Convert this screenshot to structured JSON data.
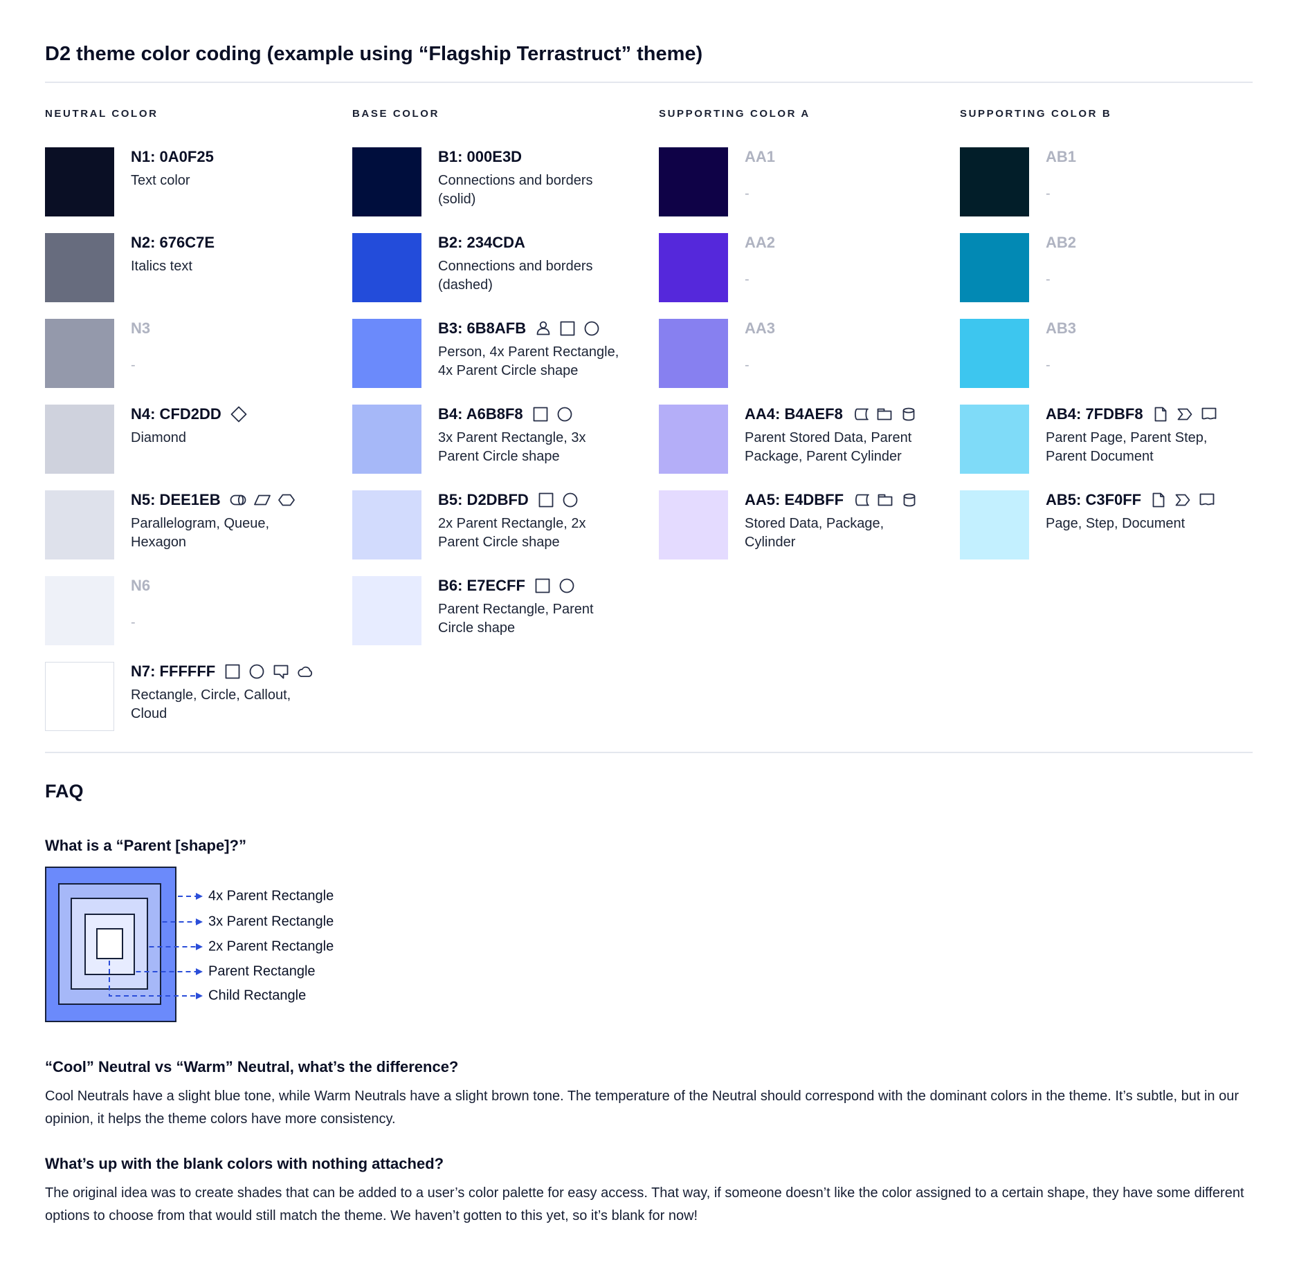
{
  "header": {
    "title": "D2 theme color coding (example using “Flagship Terrastruct” theme)"
  },
  "palette": {
    "columns": [
      {
        "header": "NEUTRAL COLOR",
        "entries": [
          {
            "label": "N1: 0A0F25",
            "swatch": "#0A0F25",
            "desc": "Text color",
            "icons": [],
            "blank": false
          },
          {
            "label": "N2: 676C7E",
            "swatch": "#676C7E",
            "desc": "Italics text",
            "icons": [],
            "blank": false
          },
          {
            "label": "N3",
            "swatch": "#9499AB",
            "desc": "-",
            "icons": [],
            "blank": true
          },
          {
            "label": "N4: CFD2DD",
            "swatch": "#CFD2DD",
            "desc": "Diamond",
            "icons": [
              "diamond"
            ],
            "blank": false
          },
          {
            "label": "N5: DEE1EB",
            "swatch": "#DEE1EB",
            "desc": "Parallelogram, Queue, Hexagon",
            "icons": [
              "queue",
              "parallelogram",
              "hexagon"
            ],
            "blank": false
          },
          {
            "label": "N6",
            "swatch": "#EEF1F8",
            "desc": "-",
            "icons": [],
            "blank": true
          },
          {
            "label": "N7: FFFFFF",
            "swatch": "#FFFFFF",
            "desc": "Rectangle, Circle, Callout, Cloud",
            "icons": [
              "rectangle",
              "circle",
              "callout",
              "cloud"
            ],
            "blank": false,
            "bordered": true
          }
        ]
      },
      {
        "header": "BASE COLOR",
        "entries": [
          {
            "label": "B1: 000E3D",
            "swatch": "#000E3D",
            "desc": "Connections and borders (solid)",
            "icons": [],
            "blank": false
          },
          {
            "label": "B2: 234CDA",
            "swatch": "#234CDA",
            "desc": "Connections and borders (dashed)",
            "icons": [],
            "blank": false
          },
          {
            "label": "B3: 6B8AFB",
            "swatch": "#6B8AFB",
            "desc": "Person, 4x Parent Rectangle, 4x Parent Circle shape",
            "icons": [
              "person",
              "rectangle",
              "circle"
            ],
            "blank": false
          },
          {
            "label": "B4: A6B8F8",
            "swatch": "#A6B8F8",
            "desc": "3x Parent Rectangle, 3x Parent Circle shape",
            "icons": [
              "rectangle",
              "circle"
            ],
            "blank": false
          },
          {
            "label": "B5: D2DBFD",
            "swatch": "#D2DBFD",
            "desc": "2x Parent Rectangle, 2x Parent Circle shape",
            "icons": [
              "rectangle",
              "circle"
            ],
            "blank": false
          },
          {
            "label": "B6: E7ECFF",
            "swatch": "#E7ECFF",
            "desc": "Parent Rectangle, Parent Circle shape",
            "icons": [
              "rectangle",
              "circle"
            ],
            "blank": false
          }
        ]
      },
      {
        "header": "SUPPORTING COLOR A",
        "entries": [
          {
            "label": "AA1",
            "swatch": "#0F0247",
            "desc": "-",
            "icons": [],
            "blank": true
          },
          {
            "label": "AA2",
            "swatch": "#5528DB",
            "desc": "-",
            "icons": [],
            "blank": true
          },
          {
            "label": "AA3",
            "swatch": "#8780F0",
            "desc": "-",
            "icons": [],
            "blank": true
          },
          {
            "label": "AA4: B4AEF8",
            "swatch": "#B4AEF8",
            "desc": "Parent Stored Data, Parent Package,  Parent Cylinder",
            "icons": [
              "stored-data",
              "package",
              "cylinder"
            ],
            "blank": false
          },
          {
            "label": "AA5: E4DBFF",
            "swatch": "#E4DBFF",
            "desc": "Stored Data, Package, Cylinder",
            "icons": [
              "stored-data",
              "package",
              "cylinder"
            ],
            "blank": false
          }
        ]
      },
      {
        "header": "SUPPORTING COLOR B",
        "entries": [
          {
            "label": "AB1",
            "swatch": "#021E29",
            "desc": "-",
            "icons": [],
            "blank": true
          },
          {
            "label": "AB2",
            "swatch": "#0289B4",
            "desc": "-",
            "icons": [],
            "blank": true
          },
          {
            "label": "AB3",
            "swatch": "#3DC6EF",
            "desc": "-",
            "icons": [],
            "blank": true
          },
          {
            "label": "AB4: 7FDBF8",
            "swatch": "#7FDBF8",
            "desc": "Parent Page, Parent Step, Parent Document",
            "icons": [
              "page",
              "step",
              "document"
            ],
            "blank": false
          },
          {
            "label": "AB5: C3F0FF",
            "swatch": "#C3F0FF",
            "desc": "Page, Step, Document",
            "icons": [
              "page",
              "step",
              "document"
            ],
            "blank": false
          }
        ]
      }
    ]
  },
  "faq": {
    "title": "FAQ",
    "q1": "What is a “Parent [shape]?”",
    "diagram": {
      "arrow_color": "#2B4ED9",
      "border_color": "#16203A",
      "layers": [
        {
          "color": "#6B8AFB",
          "label": "4x Parent Rectangle"
        },
        {
          "color": "#A6B8F8",
          "label": "3x Parent Rectangle"
        },
        {
          "color": "#D2DBFD",
          "label": "2x Parent Rectangle"
        },
        {
          "color": "#E7ECFF",
          "label": "Parent Rectangle"
        },
        {
          "color": "#FFFFFF",
          "label": "Child Rectangle"
        }
      ]
    },
    "q2": "“Cool” Neutral vs “Warm” Neutral, what’s the difference?",
    "a2": "Cool Neutrals have a slight blue tone, while Warm Neutrals have a slight brown tone. The temperature of the Neutral should correspond with the dominant colors in the theme. It’s subtle, but in our opinion, it helps the theme colors have more consistency.",
    "q3": "What’s up with the blank colors with nothing attached?",
    "a3": "The original idea was to create shades that can be added to a user’s color palette for easy access. That way, if someone doesn’t like the color assigned to a certain shape, they have some different options to choose from that would still match the theme. We haven’t gotten to this yet, so it’s blank for now!"
  }
}
